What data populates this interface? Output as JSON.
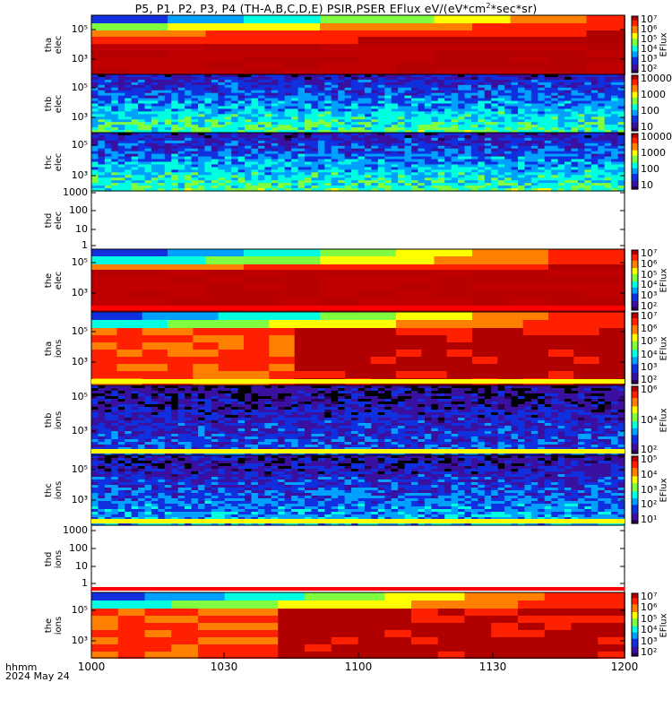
{
  "chart_data": {
    "type": "heatmap",
    "title_pre": "P5, P1, P2, P3, P4 (TH-A,B,C,D,E) PSIR,PSER EFlux eV/(eV*cm",
    "title_sup": "2",
    "title_post": "*sec*sr)",
    "x_ticks": [
      "1000",
      "1030",
      "1100",
      "1130",
      "1200"
    ],
    "footer": {
      "format": "hhmm",
      "date": "2024 May 24"
    },
    "panels": [
      {
        "probe": "tha",
        "species": "elec",
        "kind": "smooth",
        "yticks": [
          "10⁵",
          "10³"
        ],
        "cbar": "A",
        "ylabel_probe": "tha",
        "ylabel_species": "elec"
      },
      {
        "probe": "thb",
        "species": "elec",
        "kind": "noisy",
        "yticks": [
          "10⁵",
          "10³"
        ],
        "cbar": "B"
      },
      {
        "probe": "thc",
        "species": "elec",
        "kind": "noisy",
        "yticks": [
          "10⁵",
          "10³"
        ],
        "cbar": "C"
      },
      {
        "probe": "thd",
        "species": "elec",
        "kind": "empty",
        "yticks": [
          "1000",
          "100",
          "10",
          "1"
        ]
      },
      {
        "probe": "the",
        "species": "elec",
        "kind": "smooth2",
        "yticks": [
          "10⁵",
          "10³"
        ],
        "cbar": "A"
      },
      {
        "probe": "tha",
        "species": "ions",
        "kind": "ions",
        "yticks": [
          "10⁵",
          "10³"
        ],
        "cbar": "A"
      },
      {
        "probe": "thb",
        "species": "ions",
        "kind": "noisyi",
        "yticks": [
          "10⁵",
          "10³"
        ],
        "cbar": "D"
      },
      {
        "probe": "thc",
        "species": "ions",
        "kind": "noisyi2",
        "yticks": [
          "10⁵",
          "10³"
        ],
        "cbar": "E"
      },
      {
        "probe": "thd",
        "species": "ions",
        "kind": "empty",
        "yticks": [
          "1000",
          "100",
          "10",
          "1"
        ]
      },
      {
        "probe": "the",
        "species": "ions",
        "kind": "ions2",
        "yticks": [
          "10⁵",
          "10³"
        ],
        "cbar": "A"
      }
    ],
    "colorbars": {
      "A": {
        "ticks": [
          "10⁷",
          "10⁶",
          "10⁵",
          "10⁴",
          "10³",
          "10²"
        ],
        "label": "EFlux"
      },
      "B": {
        "ticks": [
          "10000",
          "1000",
          "100",
          "10"
        ],
        "label": ""
      },
      "C": {
        "ticks": [
          "10000",
          "1000",
          "100",
          "10"
        ],
        "label": ""
      },
      "D": {
        "ticks": [
          "10⁶",
          "10⁴",
          "10²"
        ],
        "label": "EFlux"
      },
      "E": {
        "ticks": [
          "10⁵",
          "10⁴",
          "10³",
          "10²",
          "10¹"
        ],
        "label": "EFlux"
      }
    },
    "colorscale": [
      "#2a0050",
      "#3a10a0",
      "#1030e0",
      "#00a0ff",
      "#00ffe0",
      "#80ff40",
      "#ffff00",
      "#ff8000",
      "#ff2000",
      "#b00000"
    ]
  }
}
